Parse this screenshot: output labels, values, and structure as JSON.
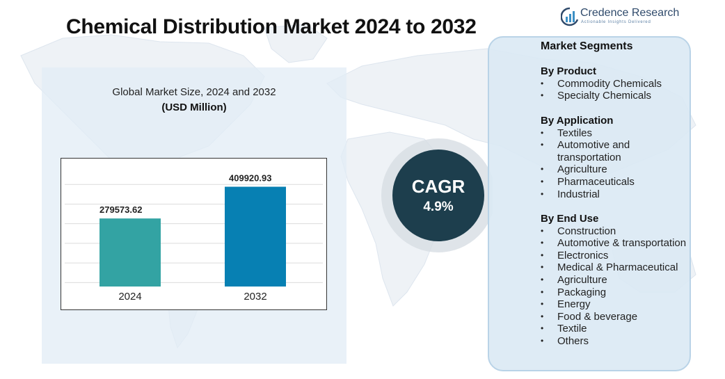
{
  "header": {
    "title": "Chemical Distribution Market 2024 to 2032",
    "logo_name": "Credence Research",
    "logo_tagline": "Actionable Insights Delivered"
  },
  "chart_panel": {
    "subtitle": "Global Market Size, 2024 and 2032",
    "unit": "(USD Million)"
  },
  "chart_data": {
    "type": "bar",
    "categories": [
      "2024",
      "2032"
    ],
    "values": [
      279573.62,
      409920.93
    ],
    "value_labels": [
      "279573.62",
      "409920.93"
    ],
    "colors": [
      "#33a3a3",
      "#0780b3"
    ],
    "ylim": [
      0,
      500000
    ],
    "grid": true
  },
  "cagr": {
    "label": "CAGR",
    "value": "4.9%"
  },
  "segments": {
    "title": "Market Segments",
    "groups": [
      {
        "heading": "By Product",
        "items": [
          "Commodity Chemicals",
          "Specialty Chemicals"
        ]
      },
      {
        "heading": "By Application",
        "items": [
          "Textiles",
          "Automotive and transportation",
          "Agriculture",
          "Pharmaceuticals",
          "Industrial"
        ]
      },
      {
        "heading": "By End Use",
        "items": [
          "Construction",
          "Automotive & transportation",
          "Electronics",
          "Medical & Pharmaceutical",
          "Agriculture",
          "Packaging",
          "Energy",
          "Food & beverage",
          "Textile",
          "Others"
        ]
      }
    ]
  }
}
